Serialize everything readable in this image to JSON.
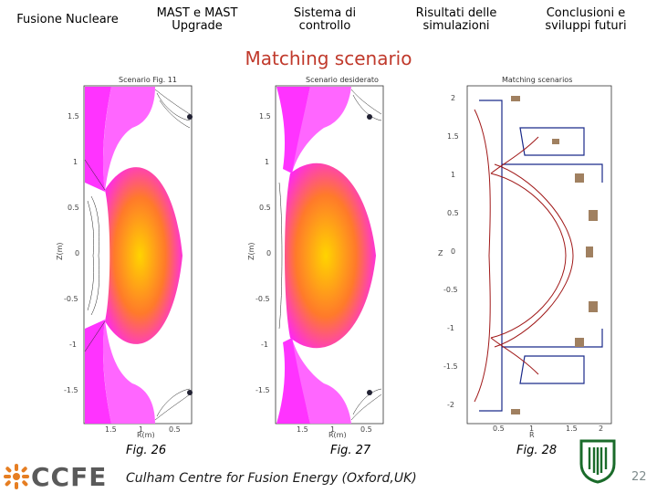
{
  "nav": {
    "tabs": [
      {
        "label": "Fusione Nucleare"
      },
      {
        "label": "MAST e MAST\nUpgrade"
      },
      {
        "label": "Sistema di\ncontrollo"
      },
      {
        "label": "Risultati delle\nsimulazioni"
      },
      {
        "label": "Conclusioni e\nsviluppi futuri"
      }
    ]
  },
  "slide": {
    "title": "Matching scenario"
  },
  "figures": [
    {
      "caption": "Fig. 26",
      "plot_title": "Scenario Fig. 11",
      "xlabel": "R(m)",
      "ylabel": "Z(m)",
      "yticks": [
        "1.5",
        "1",
        "0.5",
        "0",
        "-0.5",
        "-1",
        "-1.5"
      ],
      "xticks": [
        "1.5",
        "1",
        "0.5"
      ]
    },
    {
      "caption": "Fig. 27",
      "plot_title": "Scenario desiderato",
      "xlabel": "R(m)",
      "ylabel": "Z(m)",
      "yticks": [
        "1.5",
        "1",
        "0.5",
        "0",
        "-0.5",
        "-1",
        "-1.5"
      ],
      "xticks": [
        "1.5",
        "1",
        "0.5"
      ]
    },
    {
      "caption": "Fig. 28",
      "plot_title": "Matching scenarios",
      "xlabel": "R",
      "ylabel": "Z",
      "yticks": [
        "2",
        "1.5",
        "1",
        "0.5",
        "0",
        "-0.5",
        "-1",
        "-1.5",
        "-2"
      ],
      "xticks": [
        "0.5",
        "1",
        "1.5",
        "2"
      ]
    }
  ],
  "footer": {
    "logo": "CCFE",
    "text": "Culham Centre for Fusion Energy (Oxford,UK)",
    "page": "22"
  }
}
